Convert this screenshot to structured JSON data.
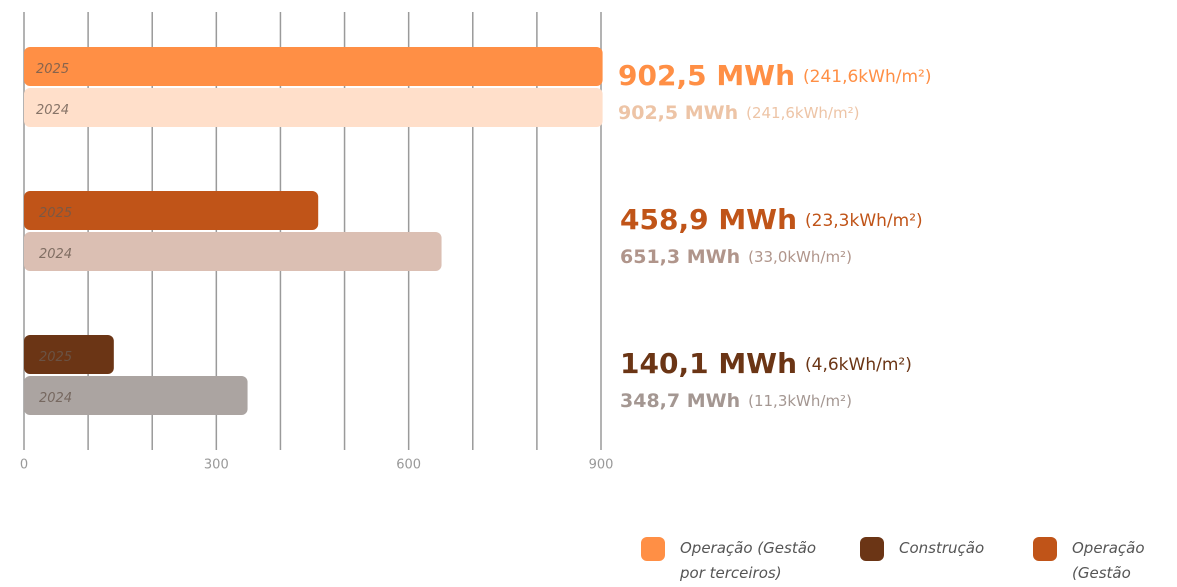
{
  "chart_data": {
    "type": "bar",
    "orientation": "horizontal",
    "xlim": [
      0,
      900
    ],
    "xticks": [
      0,
      300,
      600,
      900
    ],
    "xgrid": [
      0,
      100,
      200,
      300,
      400,
      500,
      600,
      700,
      800,
      900
    ],
    "grid": true,
    "series": [
      {
        "name": "2025",
        "colors": [
          "#ff8f45",
          "#c05418",
          "#6b3515"
        ],
        "label_colors": [
          "#ff8f45",
          "#c05418",
          "#6b3515"
        ],
        "values": [
          902.5,
          458.9,
          140.1
        ],
        "value_labels": [
          "902,5 MWh",
          "458,9 MWh",
          "140,1 MWh"
        ],
        "intensities": [
          241.6,
          23.3,
          4.6
        ],
        "intensity_labels": [
          "(241,6kWh/m²)",
          "(23,3kWh/m²)",
          "(4,6kWh/m²)"
        ]
      },
      {
        "name": "2024",
        "colors": [
          "#ffdfca",
          "#dbbfb3",
          "#aba4a1"
        ],
        "label_colors": [
          "#edc4a6",
          "#b0958b",
          "#a49792"
        ],
        "values": [
          902.5,
          651.3,
          348.7
        ],
        "value_labels": [
          "902,5 MWh",
          "651,3 MWh",
          "348,7 MWh"
        ],
        "intensities": [
          241.6,
          33.0,
          11.3
        ],
        "intensity_labels": [
          "(241,6kWh/m²)",
          "(33,0kWh/m²)",
          "(11,3kWh/m²)"
        ]
      }
    ],
    "legend": [
      {
        "label": "Operação (Gestão por terceiros)",
        "color": "#ff8f45"
      },
      {
        "label": "Construção",
        "color": "#6b3515"
      },
      {
        "label": "Operação (Gestão OIC)",
        "color": "#c05418"
      }
    ]
  }
}
